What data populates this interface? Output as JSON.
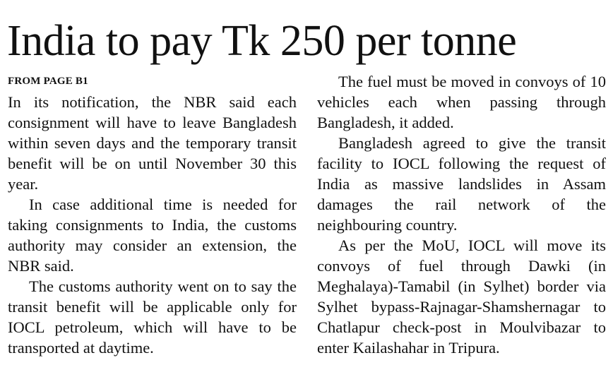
{
  "article": {
    "headline": "India to pay Tk 250 per tonne",
    "kicker": "FROM PAGE B1",
    "left_column": [
      "In its notification, the NBR said each consignment will have to leave Bangladesh within seven days and the temporary transit benefit will be on until November 30 this year.",
      "In case additional time is needed for taking consignments to India, the customs authority may consider an extension, the NBR said.",
      "The customs authority went on to say the transit benefit will be applicable only for IOCL petroleum, which will have to be transported at daytime."
    ],
    "right_column": [
      "The fuel must be moved in convoys of 10 vehicles each when passing through Bangladesh, it added.",
      "Bangladesh agreed to give the transit facility to IOCL following the request of India as massive landslides in Assam damages the rail network of the neighbouring country.",
      "As per the MoU, IOCL will move its convoys of fuel through Dawki (in Meghalaya)-Tamabil (in Sylhet) border via Sylhet bypass-Rajnagar-Shamshernagar to Chatlapur check-post in Moulvibazar to enter Kailashahar in Tripura."
    ]
  }
}
